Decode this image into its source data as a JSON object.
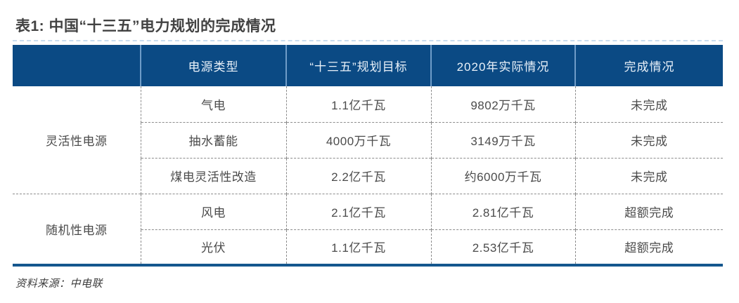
{
  "title": "表1: 中国“十三五”电力规划的完成情况",
  "table": {
    "columns": [
      "",
      "电源类型",
      "“十三五”规划目标",
      "2020年实际情况",
      "完成情况"
    ],
    "groups": [
      {
        "label": "灵活性电源",
        "rows": [
          {
            "type": "气电",
            "target": "1.1亿千瓦",
            "actual": "9802万千瓦",
            "status": "未完成"
          },
          {
            "type": "抽水蓄能",
            "target": "4000万千瓦",
            "actual": "3149万千瓦",
            "status": "未完成"
          },
          {
            "type": "煤电灵活性改造",
            "target": "2.2亿千瓦",
            "actual": "约6000万千瓦",
            "status": "未完成"
          }
        ]
      },
      {
        "label": "随机性电源",
        "rows": [
          {
            "type": "风电",
            "target": "2.1亿千瓦",
            "actual": "2.81亿千瓦",
            "status": "超额完成"
          },
          {
            "type": "光伏",
            "target": "1.1亿千瓦",
            "actual": "2.53亿千瓦",
            "status": "超额完成"
          }
        ]
      }
    ]
  },
  "source": "资料来源：中电联",
  "colors": {
    "header_bg": "#0b4a84",
    "header_text": "#e9f1f9",
    "header_divider": "#6f9cc8",
    "top_dashed_line": "#c9dcee",
    "bottom_border": "#15578e",
    "dashed_grid": "#8c8c8c",
    "body_text": "#4b4b4b",
    "title_text": "#424242"
  }
}
